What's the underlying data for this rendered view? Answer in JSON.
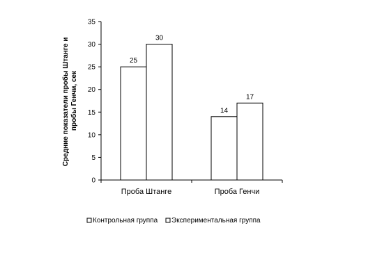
{
  "chart_data": {
    "type": "bar",
    "categories": [
      "Проба Штанге",
      "Проба Генчи"
    ],
    "series": [
      {
        "name": "Контрольная группа",
        "values": [
          25,
          14
        ]
      },
      {
        "name": "Экспериментальная группа",
        "values": [
          30,
          17
        ]
      }
    ],
    "ylabel_lines": [
      "Средние показатели пробы Штанге и",
      "пробы Генчи, сек"
    ],
    "ylim": [
      0,
      35
    ],
    "yticks": [
      0,
      5,
      10,
      15,
      20,
      25,
      30,
      35
    ],
    "data_labels": true,
    "legend_position": "bottom",
    "grid": false,
    "colors": {
      "bar_fill": "#ffffff",
      "bar_stroke": "#000000"
    }
  }
}
